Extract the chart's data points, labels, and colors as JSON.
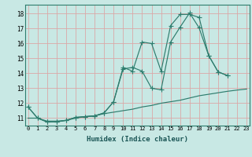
{
  "background_color": "#c8e8e4",
  "grid_color": "#dba8a8",
  "line_color": "#2e7d6e",
  "xlim": [
    -0.3,
    23.3
  ],
  "ylim": [
    10.5,
    18.6
  ],
  "xticks": [
    0,
    1,
    2,
    3,
    4,
    5,
    6,
    7,
    8,
    9,
    10,
    11,
    12,
    13,
    14,
    15,
    16,
    17,
    18,
    19,
    20,
    21,
    22,
    23
  ],
  "yticks": [
    11,
    12,
    13,
    14,
    15,
    16,
    17,
    18
  ],
  "xlabel": "Humidex (Indice chaleur)",
  "line1_x": [
    0,
    1,
    2,
    3,
    4,
    5,
    6,
    7,
    8,
    9,
    10,
    11,
    12,
    13,
    14,
    15,
    16,
    17,
    18,
    19,
    20,
    21
  ],
  "line1_y": [
    11.75,
    11.0,
    10.75,
    10.75,
    10.85,
    11.05,
    11.1,
    11.15,
    11.35,
    12.1,
    14.4,
    14.15,
    16.1,
    16.0,
    14.15,
    17.2,
    17.95,
    17.95,
    17.75,
    15.2,
    14.1,
    13.85
  ],
  "line2_x": [
    0,
    1,
    2,
    3,
    4,
    5,
    6,
    7,
    8,
    9,
    10,
    11,
    12,
    13,
    14,
    15,
    16,
    17,
    18,
    19,
    20,
    21
  ],
  "line2_y": [
    11.75,
    11.0,
    10.75,
    10.75,
    10.85,
    11.05,
    11.1,
    11.15,
    11.35,
    12.1,
    14.3,
    14.4,
    14.15,
    13.0,
    12.9,
    16.1,
    17.1,
    18.05,
    17.05,
    15.2,
    14.1,
    13.85
  ],
  "line3_x": [
    0,
    1,
    2,
    3,
    4,
    5,
    6,
    7,
    8,
    9,
    10,
    11,
    12,
    13,
    14,
    15,
    16,
    17,
    18,
    19,
    20,
    21,
    22,
    23
  ],
  "line3_y": [
    11.0,
    11.0,
    10.8,
    10.8,
    10.85,
    11.0,
    11.1,
    11.15,
    11.3,
    11.4,
    11.5,
    11.6,
    11.75,
    11.85,
    12.0,
    12.1,
    12.2,
    12.35,
    12.5,
    12.6,
    12.7,
    12.8,
    12.88,
    12.95
  ]
}
